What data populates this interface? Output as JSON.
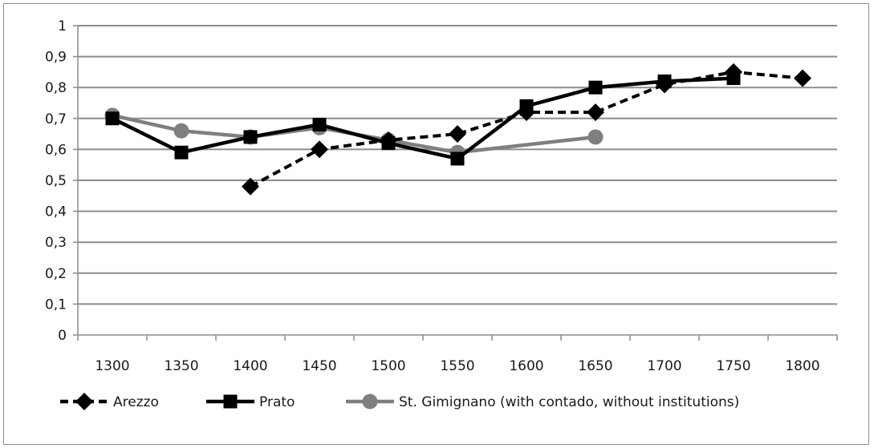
{
  "chart_data": {
    "type": "line",
    "title": "",
    "xlabel": "",
    "ylabel": "",
    "categories": [
      "1300",
      "1350",
      "1400",
      "1450",
      "1500",
      "1550",
      "1600",
      "1650",
      "1700",
      "1750",
      "1800"
    ],
    "y_ticks": [
      "0",
      "0,1",
      "0,2",
      "0,3",
      "0,4",
      "0,5",
      "0,6",
      "0,7",
      "0,8",
      "0,9",
      "1"
    ],
    "ylim": [
      0,
      1
    ],
    "grid": "horizontal",
    "legend_position": "bottom",
    "series": [
      {
        "name": "Arezzo",
        "color": "#000000",
        "line_style": "dashed",
        "marker": "diamond",
        "values": [
          null,
          null,
          0.48,
          0.6,
          0.63,
          0.65,
          0.72,
          0.72,
          0.81,
          0.85,
          0.83
        ]
      },
      {
        "name": "Prato",
        "color": "#000000",
        "line_style": "solid",
        "marker": "square",
        "values": [
          0.7,
          0.59,
          0.64,
          0.68,
          0.62,
          0.57,
          0.74,
          0.8,
          0.82,
          0.83,
          null
        ]
      },
      {
        "name": "St. Gimignano (with contado, without institutions)",
        "color": "#7f7f7f",
        "line_style": "solid",
        "marker": "circle",
        "values": [
          0.71,
          0.66,
          0.64,
          0.67,
          0.63,
          0.59,
          null,
          0.64,
          null,
          null,
          null
        ]
      }
    ]
  }
}
